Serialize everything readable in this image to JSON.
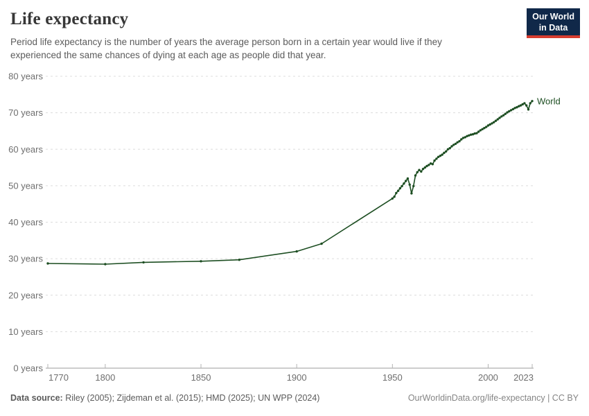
{
  "header": {
    "title": "Life expectancy",
    "subtitle": "Period life expectancy is the number of years the average person born in a certain year would live if they experienced the same chances of dying at each age as people did that year.",
    "logo": {
      "line1": "Our World",
      "line2": "in Data",
      "bg_color": "#102849",
      "accent_color": "#d73c2f"
    }
  },
  "footer": {
    "source_label": "Data source:",
    "source_text": " Riley (2005); Zijdeman et al. (2015); HMD (2025); UN WPP (2024)",
    "link_text": "OurWorldinData.org/life-expectancy | CC BY"
  },
  "chart_data": {
    "type": "line",
    "title": "Life expectancy",
    "xlabel": "",
    "ylabel": "",
    "xlim": [
      1770,
      2023
    ],
    "ylim": [
      0,
      80
    ],
    "grid": "horizontal-dashed",
    "gridline_color": "#dcdcdc",
    "axis_color": "#9b9b9b",
    "legend_position": "end-of-line",
    "x_ticks": [
      1770,
      1800,
      1850,
      1900,
      1950,
      2000,
      2023
    ],
    "x_tick_labels": [
      "1770",
      "1800",
      "1850",
      "1900",
      "1950",
      "2000",
      "2023"
    ],
    "y_ticks": [
      0,
      10,
      20,
      30,
      40,
      50,
      60,
      70,
      80
    ],
    "y_tick_labels": [
      "0 years",
      "10 years",
      "20 years",
      "30 years",
      "40 years",
      "50 years",
      "60 years",
      "70 years",
      "80 years"
    ],
    "series": [
      {
        "name": "World",
        "color": "#1d4e22",
        "points": [
          [
            1770,
            28.7
          ],
          [
            1800,
            28.5
          ],
          [
            1820,
            29.0
          ],
          [
            1850,
            29.3
          ],
          [
            1870,
            29.7
          ],
          [
            1900,
            32.0
          ],
          [
            1913,
            34.1
          ],
          [
            1950,
            46.5
          ],
          [
            1951,
            47.0
          ],
          [
            1952,
            48.0
          ],
          [
            1953,
            48.6
          ],
          [
            1954,
            49.3
          ],
          [
            1955,
            49.9
          ],
          [
            1956,
            50.6
          ],
          [
            1957,
            51.3
          ],
          [
            1958,
            52.0
          ],
          [
            1959,
            50.3
          ],
          [
            1960,
            47.9
          ],
          [
            1961,
            49.9
          ],
          [
            1962,
            52.8
          ],
          [
            1963,
            53.7
          ],
          [
            1964,
            54.3
          ],
          [
            1965,
            53.9
          ],
          [
            1966,
            54.6
          ],
          [
            1967,
            55.0
          ],
          [
            1968,
            55.4
          ],
          [
            1969,
            55.7
          ],
          [
            1970,
            56.1
          ],
          [
            1971,
            55.9
          ],
          [
            1972,
            56.9
          ],
          [
            1973,
            57.4
          ],
          [
            1974,
            57.9
          ],
          [
            1975,
            58.2
          ],
          [
            1976,
            58.5
          ],
          [
            1977,
            59.0
          ],
          [
            1978,
            59.4
          ],
          [
            1979,
            60.0
          ],
          [
            1980,
            60.3
          ],
          [
            1981,
            60.8
          ],
          [
            1982,
            61.2
          ],
          [
            1983,
            61.5
          ],
          [
            1984,
            61.9
          ],
          [
            1985,
            62.2
          ],
          [
            1986,
            62.7
          ],
          [
            1987,
            63.1
          ],
          [
            1988,
            63.3
          ],
          [
            1989,
            63.6
          ],
          [
            1990,
            63.8
          ],
          [
            1991,
            64.0
          ],
          [
            1992,
            64.1
          ],
          [
            1993,
            64.3
          ],
          [
            1994,
            64.4
          ],
          [
            1995,
            64.8
          ],
          [
            1996,
            65.2
          ],
          [
            1997,
            65.5
          ],
          [
            1998,
            65.8
          ],
          [
            1999,
            66.1
          ],
          [
            2000,
            66.5
          ],
          [
            2001,
            66.8
          ],
          [
            2002,
            67.1
          ],
          [
            2003,
            67.4
          ],
          [
            2004,
            67.8
          ],
          [
            2005,
            68.2
          ],
          [
            2006,
            68.6
          ],
          [
            2007,
            69.0
          ],
          [
            2008,
            69.3
          ],
          [
            2009,
            69.7
          ],
          [
            2010,
            70.1
          ],
          [
            2011,
            70.4
          ],
          [
            2012,
            70.7
          ],
          [
            2013,
            71.0
          ],
          [
            2014,
            71.3
          ],
          [
            2015,
            71.5
          ],
          [
            2016,
            71.8
          ],
          [
            2017,
            72.0
          ],
          [
            2018,
            72.3
          ],
          [
            2019,
            72.6
          ],
          [
            2020,
            72.0
          ],
          [
            2021,
            70.9
          ],
          [
            2022,
            72.6
          ],
          [
            2023,
            73.2
          ]
        ]
      }
    ]
  }
}
